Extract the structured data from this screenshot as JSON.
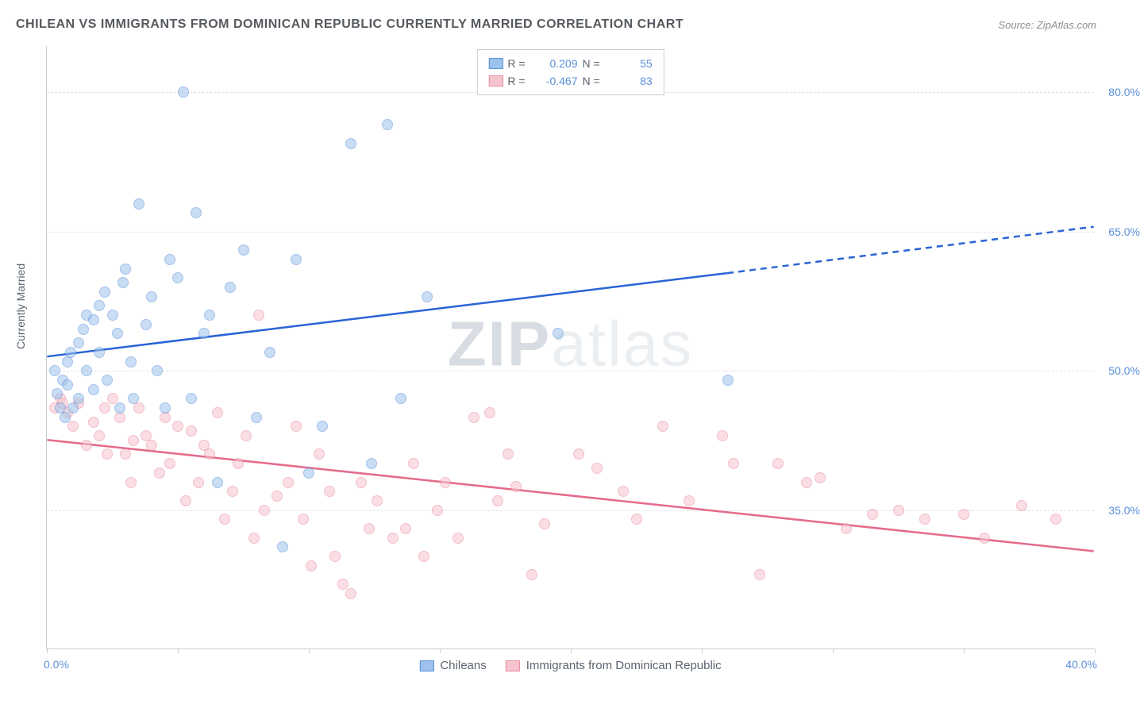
{
  "title": "CHILEAN VS IMMIGRANTS FROM DOMINICAN REPUBLIC CURRENTLY MARRIED CORRELATION CHART",
  "source_label": "Source: ZipAtlas.com",
  "ylabel": "Currently Married",
  "watermark_bold": "ZIP",
  "watermark_light": "atlas",
  "chart": {
    "type": "scatter",
    "xlim": [
      0,
      40
    ],
    "ylim": [
      20,
      85
    ],
    "x_ticks": [
      0,
      5,
      10,
      15,
      20,
      25,
      30,
      35,
      40
    ],
    "y_gridlines": [
      35,
      50,
      65,
      80
    ],
    "y_tick_labels": [
      "35.0%",
      "50.0%",
      "65.0%",
      "80.0%"
    ],
    "x_min_label": "0.0%",
    "x_max_label": "40.0%",
    "background_color": "#ffffff",
    "grid_color": "#e0e3e8",
    "axis_color": "#c8cdd3",
    "label_color": "#5b8fd8",
    "marker_size": 14,
    "marker_opacity": 0.55,
    "series": {
      "blue": {
        "label": "Chileans",
        "R": "0.209",
        "N": "55",
        "fill": "#9dc3ec",
        "stroke": "#5b8fd8",
        "trend_color": "#2a63d6",
        "trend_width": 2.5,
        "trend": {
          "x1": 0,
          "y1": 51.5,
          "x2": 26,
          "y2": 60.5,
          "ext_x2": 40,
          "ext_y2": 65.5
        },
        "points": [
          [
            0.3,
            50
          ],
          [
            0.4,
            47.5
          ],
          [
            0.5,
            46
          ],
          [
            0.6,
            49
          ],
          [
            0.7,
            45
          ],
          [
            0.8,
            51
          ],
          [
            0.8,
            48.5
          ],
          [
            0.9,
            52
          ],
          [
            1.0,
            46
          ],
          [
            1.2,
            53
          ],
          [
            1.2,
            47
          ],
          [
            1.4,
            54.5
          ],
          [
            1.5,
            50
          ],
          [
            1.5,
            56
          ],
          [
            1.8,
            55.5
          ],
          [
            1.8,
            48
          ],
          [
            2.0,
            57
          ],
          [
            2.0,
            52
          ],
          [
            2.2,
            58.5
          ],
          [
            2.3,
            49
          ],
          [
            2.5,
            56
          ],
          [
            2.7,
            54
          ],
          [
            2.8,
            46
          ],
          [
            2.9,
            59.5
          ],
          [
            3.0,
            61
          ],
          [
            3.2,
            51
          ],
          [
            3.3,
            47
          ],
          [
            3.5,
            68
          ],
          [
            3.8,
            55
          ],
          [
            4.0,
            58
          ],
          [
            4.2,
            50
          ],
          [
            4.5,
            46
          ],
          [
            4.7,
            62
          ],
          [
            5.0,
            60
          ],
          [
            5.2,
            80
          ],
          [
            5.5,
            47
          ],
          [
            5.7,
            67
          ],
          [
            6.0,
            54
          ],
          [
            6.2,
            56
          ],
          [
            6.5,
            38
          ],
          [
            7.0,
            59
          ],
          [
            7.5,
            63
          ],
          [
            8.0,
            45
          ],
          [
            8.5,
            52
          ],
          [
            9.5,
            62
          ],
          [
            10.0,
            39
          ],
          [
            10.5,
            44
          ],
          [
            11.6,
            74.5
          ],
          [
            12.4,
            40
          ],
          [
            13.0,
            76.5
          ],
          [
            13.5,
            47
          ],
          [
            14.5,
            58
          ],
          [
            19.5,
            54
          ],
          [
            26.0,
            49
          ],
          [
            9.0,
            31
          ]
        ]
      },
      "pink": {
        "label": "Immigrants from Dominican Republic",
        "R": "-0.467",
        "N": "83",
        "fill": "#f6c4cf",
        "stroke": "#e889a2",
        "trend_color": "#e56b8b",
        "trend_width": 2.5,
        "trend": {
          "x1": 0,
          "y1": 42.5,
          "x2": 40,
          "y2": 30.5
        },
        "points": [
          [
            0.3,
            46
          ],
          [
            0.5,
            47
          ],
          [
            0.6,
            46.5
          ],
          [
            0.8,
            45.5
          ],
          [
            1.0,
            44
          ],
          [
            1.2,
            46.5
          ],
          [
            1.5,
            42
          ],
          [
            1.8,
            44.5
          ],
          [
            2.0,
            43
          ],
          [
            2.2,
            46
          ],
          [
            2.3,
            41
          ],
          [
            2.5,
            47
          ],
          [
            2.8,
            45
          ],
          [
            3.0,
            41
          ],
          [
            3.2,
            38
          ],
          [
            3.3,
            42.5
          ],
          [
            3.5,
            46
          ],
          [
            3.8,
            43
          ],
          [
            4.0,
            42
          ],
          [
            4.3,
            39
          ],
          [
            4.5,
            45
          ],
          [
            4.7,
            40
          ],
          [
            5.0,
            44
          ],
          [
            5.3,
            36
          ],
          [
            5.5,
            43.5
          ],
          [
            5.8,
            38
          ],
          [
            6.0,
            42
          ],
          [
            6.2,
            41
          ],
          [
            6.5,
            45.5
          ],
          [
            6.8,
            34
          ],
          [
            7.1,
            37
          ],
          [
            7.3,
            40
          ],
          [
            7.6,
            43
          ],
          [
            7.9,
            32
          ],
          [
            8.1,
            56
          ],
          [
            8.3,
            35
          ],
          [
            8.8,
            36.5
          ],
          [
            9.2,
            38
          ],
          [
            9.5,
            44
          ],
          [
            9.8,
            34
          ],
          [
            10.1,
            29
          ],
          [
            10.4,
            41
          ],
          [
            10.8,
            37
          ],
          [
            11.0,
            30
          ],
          [
            11.3,
            27
          ],
          [
            11.6,
            26
          ],
          [
            12.0,
            38
          ],
          [
            12.3,
            33
          ],
          [
            12.6,
            36
          ],
          [
            13.2,
            32
          ],
          [
            13.7,
            33
          ],
          [
            14.0,
            40
          ],
          [
            14.4,
            30
          ],
          [
            14.9,
            35
          ],
          [
            15.2,
            38
          ],
          [
            15.7,
            32
          ],
          [
            16.3,
            45
          ],
          [
            16.9,
            45.5
          ],
          [
            17.2,
            36
          ],
          [
            17.6,
            41
          ],
          [
            17.9,
            37.5
          ],
          [
            18.5,
            28
          ],
          [
            19.0,
            33.5
          ],
          [
            20.3,
            41
          ],
          [
            21.0,
            39.5
          ],
          [
            22.0,
            37
          ],
          [
            22.5,
            34
          ],
          [
            23.5,
            44
          ],
          [
            24.5,
            36
          ],
          [
            25.8,
            43
          ],
          [
            26.2,
            40
          ],
          [
            27.2,
            28
          ],
          [
            27.9,
            40
          ],
          [
            29.0,
            38
          ],
          [
            29.5,
            38.5
          ],
          [
            30.5,
            33
          ],
          [
            31.5,
            34.5
          ],
          [
            32.5,
            35
          ],
          [
            33.5,
            34
          ],
          [
            35.0,
            34.5
          ],
          [
            35.8,
            32
          ],
          [
            37.2,
            35.5
          ],
          [
            38.5,
            34
          ]
        ]
      }
    }
  },
  "legend_top": {
    "R_label": "R =",
    "N_label": "N ="
  }
}
